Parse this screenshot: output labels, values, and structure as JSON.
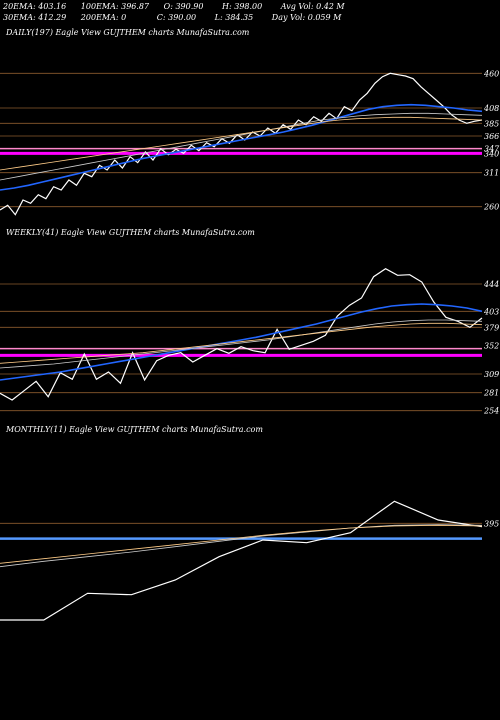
{
  "header": {
    "row1": [
      {
        "label": "20EMA:",
        "value": "403.16"
      },
      {
        "label": "100EMA:",
        "value": "396.87"
      },
      {
        "label": "O:",
        "value": "390.90"
      },
      {
        "label": "H:",
        "value": "398.00"
      },
      {
        "label": "Avg Vol:",
        "value": "0.42  M"
      }
    ],
    "row2": [
      {
        "label": "30EMA:",
        "value": "412.29"
      },
      {
        "label": "200EMA:",
        "value": "0"
      },
      {
        "label": "C:",
        "value": "390.00"
      },
      {
        "label": "L:",
        "value": "384.35"
      },
      {
        "label": "Day Vol:",
        "value": "0.059 M"
      }
    ]
  },
  "chart_data": [
    {
      "type": "line",
      "title": "DAILY(197) Eagle   View  GUJTHEM charts MunafaSutra.com",
      "yticks": [
        "460",
        "408",
        "385",
        "366",
        "347",
        "340",
        "311",
        "260"
      ],
      "hlines": {
        "orange": [
          460,
          408,
          385,
          366,
          311,
          260
        ],
        "magenta": [
          340
        ],
        "pink": [
          347
        ]
      },
      "series": [
        {
          "color": "#ffffff",
          "values": [
            255,
            262,
            248,
            270,
            265,
            278,
            272,
            290,
            285,
            300,
            292,
            310,
            305,
            322,
            315,
            330,
            318,
            335,
            326,
            342,
            330,
            347,
            338,
            346,
            340,
            352,
            344,
            356,
            350,
            362,
            355,
            368,
            360,
            372,
            366,
            378,
            370,
            383,
            376,
            390,
            383,
            395,
            388,
            400,
            392,
            410,
            404,
            420,
            430,
            445,
            455,
            460,
            458,
            456,
            452,
            440,
            430,
            420,
            410,
            398,
            390,
            385,
            388,
            390
          ]
        },
        {
          "color": "#2266ff",
          "values": [
            285,
            288,
            292,
            297,
            302,
            307,
            312,
            317,
            322,
            327,
            332,
            336,
            340,
            344,
            348,
            352,
            356,
            360,
            364,
            368,
            372,
            377,
            382,
            388,
            394,
            400,
            406,
            410,
            412,
            413,
            412,
            410,
            408,
            405,
            403
          ]
        },
        {
          "color": "#cccccc",
          "values": [
            300,
            305,
            310,
            315,
            320,
            325,
            330,
            335,
            340,
            345,
            350,
            355,
            360,
            365,
            370,
            375,
            380,
            385,
            390,
            393,
            396,
            398,
            399,
            400,
            400,
            399,
            398,
            397
          ]
        },
        {
          "color": "#ffcc88",
          "values": [
            315,
            319,
            323,
            327,
            331,
            335,
            339,
            343,
            347,
            351,
            355,
            359,
            363,
            367,
            371,
            375,
            379,
            383,
            387,
            390,
            392,
            393,
            394,
            394,
            393,
            392,
            391,
            390
          ]
        }
      ]
    },
    {
      "type": "line",
      "title": "WEEKLY(41) Eagle   View  GUJTHEM charts MunafaSutra.com",
      "yticks": [
        "444",
        "403",
        "379",
        "352",
        "309",
        "281",
        "254"
      ],
      "hlines": {
        "orange": [
          444,
          403,
          379,
          309,
          281,
          254
        ],
        "magenta": [
          337
        ],
        "pink": [
          347
        ]
      },
      "series": [
        {
          "color": "#ffffff",
          "values": [
            280,
            270,
            284,
            298,
            275,
            311,
            301,
            339,
            301,
            312,
            295,
            341,
            300,
            329,
            337,
            341,
            327,
            337,
            347,
            340,
            350,
            344,
            341,
            376,
            346,
            352,
            358,
            367,
            396,
            412,
            423,
            455,
            467,
            457,
            458,
            447,
            417,
            394,
            388,
            379,
            393
          ]
        },
        {
          "color": "#2266ff",
          "values": [
            300,
            303,
            306,
            309,
            312,
            316,
            320,
            324,
            328,
            332,
            336,
            340,
            344,
            348,
            352,
            356,
            360,
            364,
            369,
            374,
            379,
            384,
            390,
            396,
            402,
            407,
            411,
            413,
            414,
            413,
            411,
            408,
            403
          ]
        },
        {
          "color": "#cccccc",
          "values": [
            318,
            320,
            322,
            324,
            327,
            330,
            333,
            336,
            339,
            342,
            345,
            348,
            351,
            354,
            357,
            360,
            364,
            368,
            372,
            376,
            380,
            384,
            387,
            389,
            390,
            390,
            389,
            388
          ]
        },
        {
          "color": "#ffcc88",
          "values": [
            325,
            327,
            329,
            331,
            333,
            335,
            337,
            339,
            341,
            344,
            347,
            350,
            353,
            356,
            359,
            362,
            365,
            368,
            371,
            374,
            377,
            380,
            382,
            384,
            385,
            385,
            384,
            383
          ]
        }
      ]
    },
    {
      "type": "line",
      "title": "MONTHLY(11) Eagle   View  GUJTHEM charts MunafaSutra.com",
      "yticks": [
        "395"
      ],
      "hlines": {
        "orange": [
          395
        ],
        "blue": [
          372
        ]
      },
      "series": [
        {
          "color": "#ffffff",
          "values": [
            250,
            250,
            290,
            288,
            310,
            345,
            370,
            366,
            381,
            428,
            400,
            390
          ]
        },
        {
          "color": "#cccccc",
          "values": [
            330,
            338,
            345,
            352,
            360,
            368,
            376,
            382,
            388,
            392,
            393,
            392
          ]
        },
        {
          "color": "#ffcc88",
          "values": [
            335,
            342,
            349,
            356,
            363,
            370,
            377,
            383,
            388,
            391,
            392,
            391
          ]
        }
      ]
    }
  ]
}
